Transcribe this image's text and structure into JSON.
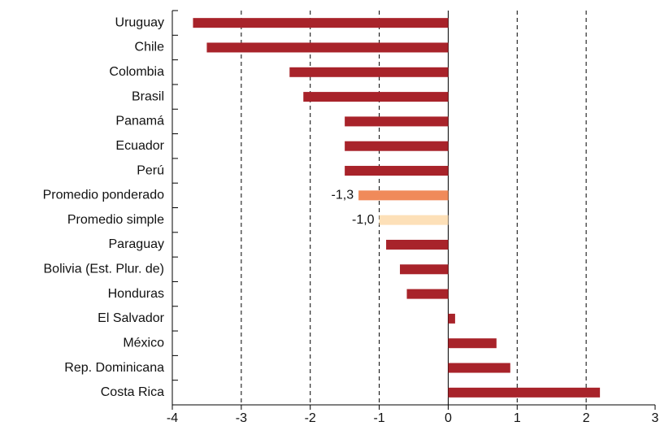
{
  "chart_data": {
    "type": "barh",
    "categories": [
      "Uruguay",
      "Chile",
      "Colombia",
      "Brasil",
      "Panamá",
      "Ecuador",
      "Perú",
      "Promedio ponderado",
      "Promedio simple",
      "Paraguay",
      "Bolivia (Est. Plur. de)",
      "Honduras",
      "El Salvador",
      "México",
      "Rep. Dominicana",
      "Costa Rica"
    ],
    "values": [
      -3.7,
      -3.5,
      -2.3,
      -2.1,
      -1.5,
      -1.5,
      -1.5,
      -1.3,
      -1.0,
      -0.9,
      -0.7,
      -0.6,
      0.1,
      0.7,
      0.9,
      2.2
    ],
    "value_labels": [
      null,
      null,
      null,
      null,
      null,
      null,
      null,
      "-1,3",
      "-1,0",
      null,
      null,
      null,
      null,
      null,
      null,
      null
    ],
    "colors": [
      "#a8232a",
      "#a8232a",
      "#a8232a",
      "#a8232a",
      "#a8232a",
      "#a8232a",
      "#a8232a",
      "#f08a5a",
      "#fde0b8",
      "#a8232a",
      "#a8232a",
      "#a8232a",
      "#a8232a",
      "#a8232a",
      "#a8232a",
      "#a8232a"
    ],
    "xlim": [
      -4,
      3
    ],
    "xticks": [
      -4,
      -3,
      -2,
      -1,
      0,
      1,
      2,
      3
    ],
    "grid": true
  }
}
